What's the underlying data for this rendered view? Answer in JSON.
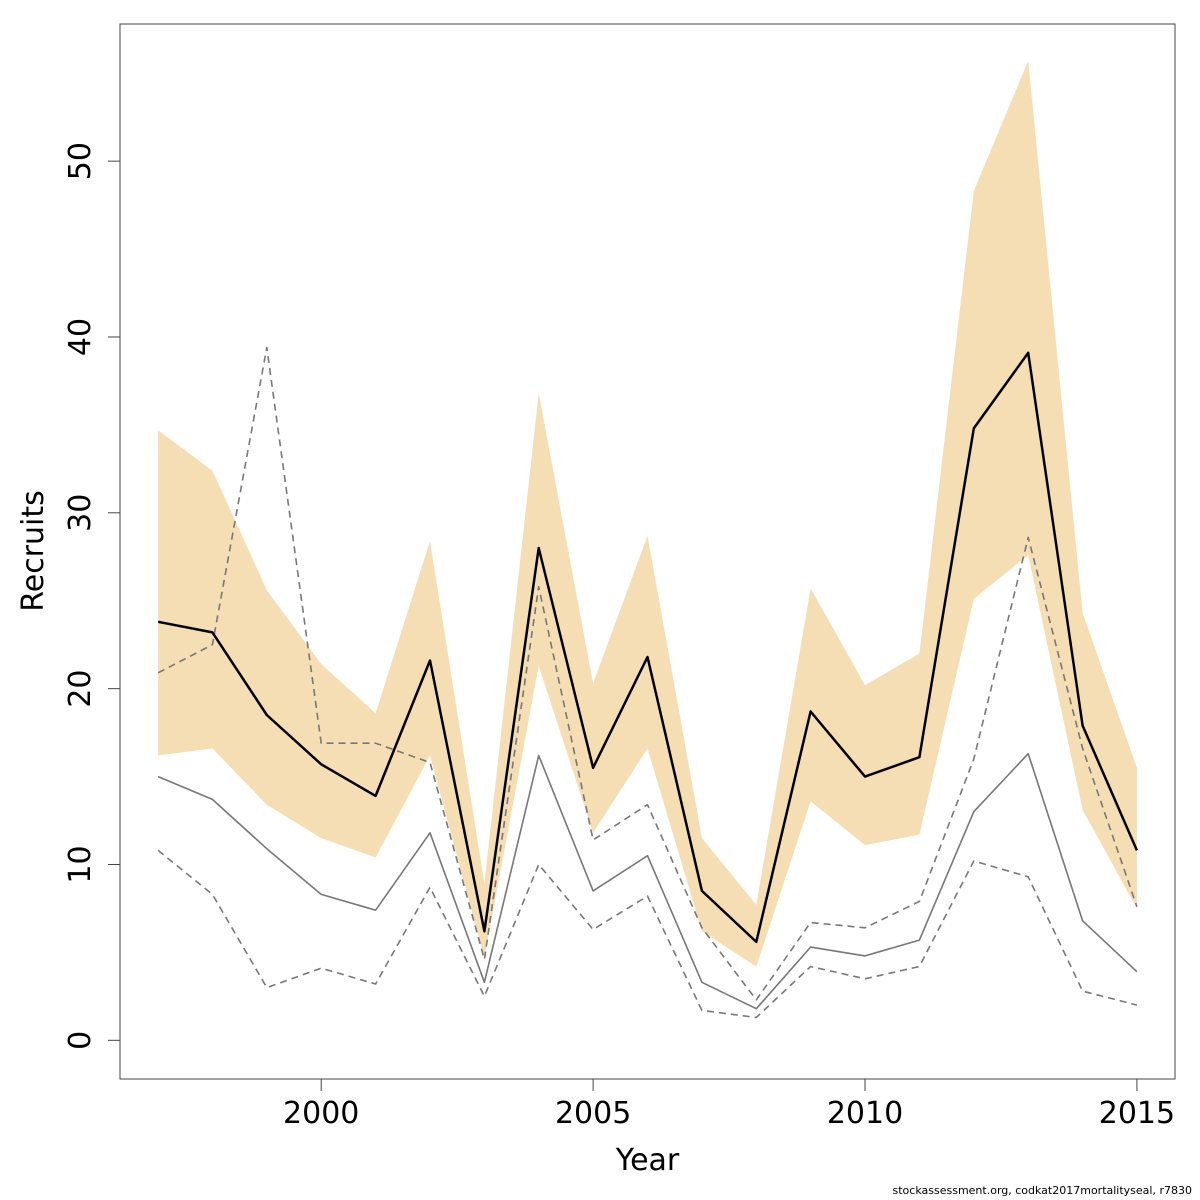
{
  "chart_data": {
    "type": "line",
    "title": "",
    "xlabel": "Year",
    "ylabel": "Recruits",
    "xlim": [
      1996.3,
      2015.7
    ],
    "ylim": [
      -2.2,
      57.8
    ],
    "x_ticks": [
      2000,
      2005,
      2010,
      2015
    ],
    "y_ticks": [
      0,
      10,
      20,
      30,
      40,
      50
    ],
    "grid": false,
    "legend": "none",
    "years": [
      1997,
      1998,
      1999,
      2000,
      2001,
      2002,
      2003,
      2004,
      2005,
      2006,
      2007,
      2008,
      2009,
      2010,
      2011,
      2012,
      2013,
      2014,
      2015
    ],
    "confidence_band": {
      "color": "#f5deb3",
      "lower": [
        16.2,
        16.6,
        13.4,
        11.5,
        10.4,
        16.2,
        4.7,
        21.3,
        11.8,
        16.6,
        6.2,
        4.2,
        13.6,
        11.1,
        11.7,
        25.1,
        27.6,
        13.1,
        7.5
      ],
      "upper": [
        34.7,
        32.4,
        25.6,
        21.4,
        18.6,
        28.4,
        8.9,
        36.8,
        20.3,
        28.7,
        11.5,
        7.7,
        25.7,
        20.2,
        22.0,
        48.3,
        55.7,
        24.3,
        15.5
      ]
    },
    "series": [
      {
        "role": "estimate",
        "color": "#000000",
        "style": "solid",
        "values": [
          23.8,
          23.2,
          18.5,
          15.7,
          13.9,
          21.6,
          6.2,
          28.0,
          15.5,
          21.8,
          8.5,
          5.6,
          18.7,
          15.0,
          16.1,
          34.8,
          39.1,
          17.9,
          10.8
        ]
      },
      {
        "role": "comparison",
        "color": "#777777",
        "style": "solid",
        "values": [
          15.0,
          13.7,
          10.9,
          8.3,
          7.4,
          11.8,
          3.3,
          16.2,
          8.5,
          10.5,
          3.3,
          1.8,
          5.3,
          4.8,
          5.7,
          13.0,
          16.3,
          6.8,
          3.9
        ]
      },
      {
        "role": "comparison-upper",
        "color": "#777777",
        "style": "dashed",
        "values": [
          20.9,
          22.5,
          39.4,
          16.9,
          16.9,
          15.8,
          4.6,
          25.8,
          11.4,
          13.4,
          6.4,
          2.3,
          6.7,
          6.4,
          7.9,
          16.0,
          28.6,
          16.6,
          7.6
        ]
      },
      {
        "role": "comparison-lower",
        "color": "#777777",
        "style": "dashed",
        "values": [
          10.8,
          8.3,
          3.0,
          4.1,
          3.2,
          8.7,
          2.5,
          10.0,
          6.3,
          8.2,
          1.7,
          1.3,
          4.2,
          3.5,
          4.2,
          10.2,
          9.3,
          2.8,
          2.0
        ]
      }
    ]
  },
  "footer": "stockassessment.org, codkat2017mortalityseal, r7830"
}
